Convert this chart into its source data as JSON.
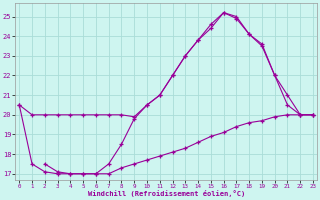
{
  "bg_color": "#cef5f0",
  "grid_color": "#aaddd8",
  "line_color": "#990099",
  "xlabel": "Windchill (Refroidissement éolien,°C)",
  "xlim": [
    -0.3,
    23.3
  ],
  "ylim": [
    16.7,
    25.7
  ],
  "yticks": [
    17,
    18,
    19,
    20,
    21,
    22,
    23,
    24,
    25
  ],
  "xticks": [
    0,
    1,
    2,
    3,
    4,
    5,
    6,
    7,
    8,
    9,
    10,
    11,
    12,
    13,
    14,
    15,
    16,
    17,
    18,
    19,
    20,
    21,
    22,
    23
  ],
  "line1_x": [
    0,
    1,
    2,
    3,
    4,
    5,
    6,
    7,
    8,
    9,
    10,
    11,
    12,
    13,
    14,
    15,
    16,
    17,
    18,
    19,
    20,
    21,
    22,
    23
  ],
  "line1_y": [
    20.5,
    20.0,
    20.0,
    20.0,
    20.0,
    20.0,
    20.0,
    20.0,
    20.0,
    19.9,
    20.5,
    21.0,
    22.0,
    23.0,
    23.8,
    24.6,
    25.2,
    25.0,
    24.1,
    23.6,
    22.0,
    21.0,
    20.0,
    20.0
  ],
  "line2_x": [
    0,
    1,
    2,
    3,
    4,
    5,
    6,
    7,
    8,
    9,
    10,
    11,
    12,
    13,
    14,
    15,
    16,
    17,
    18,
    19,
    20,
    21,
    22,
    23
  ],
  "line2_y": [
    20.5,
    17.5,
    17.1,
    17.0,
    17.0,
    17.0,
    17.0,
    17.5,
    18.5,
    19.8,
    20.5,
    21.0,
    22.0,
    23.0,
    23.8,
    24.4,
    25.2,
    24.9,
    24.1,
    23.5,
    22.0,
    20.5,
    20.0,
    20.0
  ],
  "line3_x": [
    2,
    3,
    4,
    5,
    6,
    7,
    8,
    9,
    10,
    11,
    12,
    13,
    14,
    15,
    16,
    17,
    18,
    19,
    20,
    21,
    22,
    23
  ],
  "line3_y": [
    17.5,
    17.1,
    17.0,
    17.0,
    17.0,
    17.0,
    17.3,
    17.5,
    17.7,
    17.9,
    18.1,
    18.3,
    18.6,
    18.9,
    19.1,
    19.4,
    19.6,
    19.7,
    19.9,
    20.0,
    20.0,
    20.0
  ]
}
